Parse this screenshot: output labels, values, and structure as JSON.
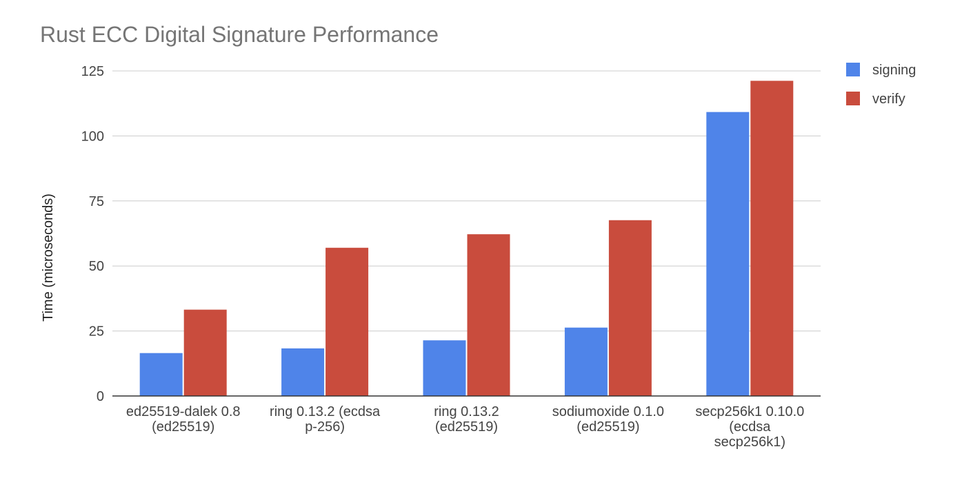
{
  "chart_data": {
    "type": "bar",
    "title": "Rust ECC Digital Signature Performance",
    "ylabel": "Time (microseconds)",
    "xlabel": "",
    "ylim": [
      0,
      125
    ],
    "yticks": [
      0,
      25,
      50,
      75,
      100,
      125
    ],
    "grid": true,
    "legend_position": "top-right",
    "categories": [
      [
        "ed25519-dalek 0.8",
        "(ed25519)"
      ],
      [
        "ring 0.13.2 (ecdsa",
        "p-256)"
      ],
      [
        "ring 0.13.2",
        "(ed25519)"
      ],
      [
        "sodiumoxide 0.1.0",
        "(ed25519)"
      ],
      [
        "secp256k1 0.10.0",
        "(ecdsa",
        "secp256k1)"
      ]
    ],
    "series": [
      {
        "name": "signing",
        "color": "#4f84e9",
        "values": [
          16.5,
          18.3,
          21.4,
          26.3,
          109.2
        ]
      },
      {
        "name": "verify",
        "color": "#c94c3d",
        "values": [
          33.2,
          57.0,
          62.2,
          67.6,
          121.2
        ]
      }
    ]
  }
}
